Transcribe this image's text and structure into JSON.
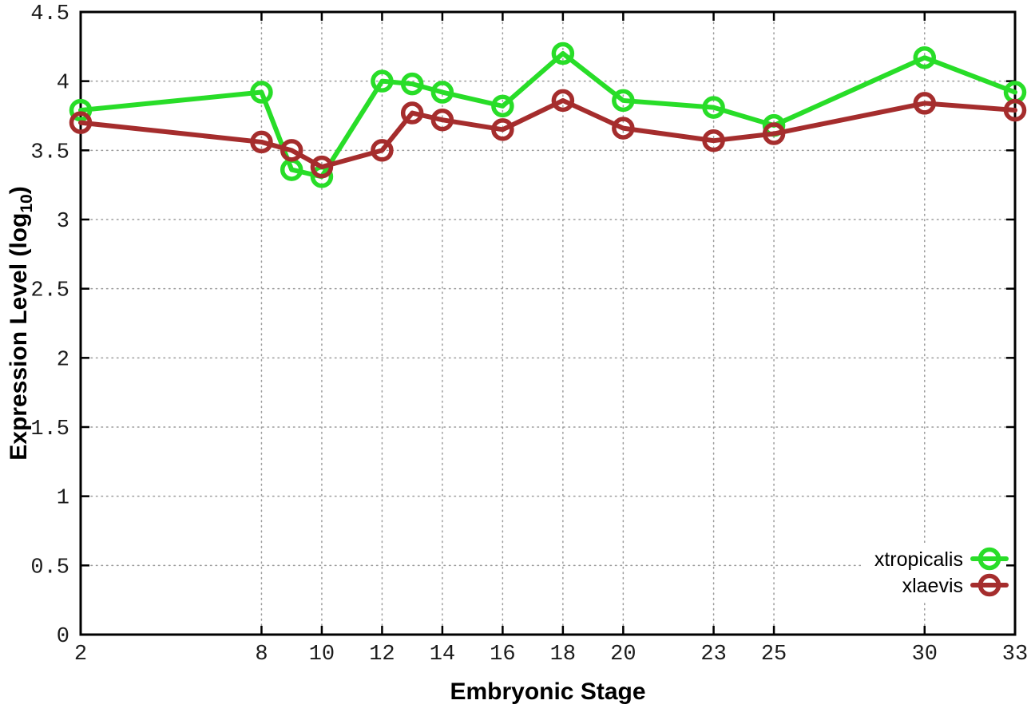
{
  "chart_data": {
    "type": "line",
    "title": "",
    "xlabel": "Embryonic Stage",
    "ylabel": {
      "pre": "Expression Level (log",
      "sub": "10",
      "post": ")"
    },
    "xlim": [
      2,
      33
    ],
    "ylim": [
      0,
      4.5
    ],
    "grid": {
      "show": true,
      "style": "dotted",
      "color": "#9b9b9b"
    },
    "axis_color": "#000000",
    "xticks": {
      "values": [
        2,
        8,
        10,
        12,
        14,
        16,
        18,
        20,
        23,
        25,
        30,
        33
      ],
      "labels": [
        "2",
        "8",
        "10",
        "12",
        "14",
        "16",
        "18",
        "20",
        "23",
        "25",
        "30",
        "33"
      ]
    },
    "yticks": {
      "values": [
        0,
        0.5,
        1,
        1.5,
        2,
        2.5,
        3,
        3.5,
        4,
        4.5
      ],
      "labels": [
        "0",
        "0.5",
        "1",
        "1.5",
        "2",
        "2.5",
        "3",
        "3.5",
        "4",
        "4.5"
      ]
    },
    "x": [
      2,
      8,
      9,
      10,
      12,
      13,
      14,
      16,
      18,
      20,
      23,
      25,
      30,
      33
    ],
    "series": [
      {
        "name": "xtropicalis",
        "color": "#28dd28",
        "marker": "open-circle",
        "values": [
          3.79,
          3.92,
          3.36,
          3.31,
          4.0,
          3.98,
          3.92,
          3.82,
          4.2,
          3.86,
          3.81,
          3.68,
          4.17,
          3.92
        ]
      },
      {
        "name": "xlaevis",
        "color": "#a52d2d",
        "marker": "open-circle",
        "values": [
          3.7,
          3.56,
          3.5,
          3.38,
          3.5,
          3.77,
          3.72,
          3.65,
          3.86,
          3.66,
          3.57,
          3.62,
          3.84,
          3.79
        ]
      }
    ],
    "legend": {
      "position": "inside-bottom-right",
      "entries": [
        "xtropicalis",
        "xlaevis"
      ]
    }
  }
}
